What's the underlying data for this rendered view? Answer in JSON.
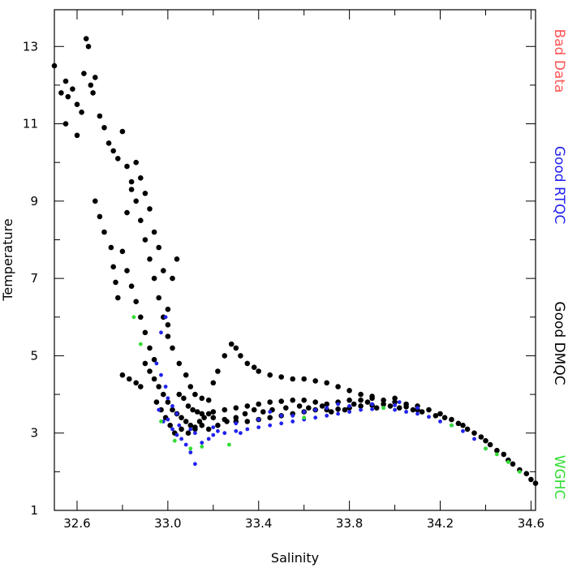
{
  "chart_data": {
    "type": "scatter",
    "xlabel": "Salinity",
    "ylabel": "Temperature",
    "xlim": [
      32.5,
      34.62
    ],
    "ylim": [
      1,
      13.95
    ],
    "xticks": [
      32.6,
      33.0,
      33.4,
      33.8,
      34.2,
      34.6
    ],
    "xtick_labels": [
      "32.6",
      "33.0",
      "33.4",
      "33.8",
      "34.2",
      "34.6"
    ],
    "yticks": [
      1,
      3,
      5,
      7,
      9,
      11,
      13
    ],
    "ytick_labels": [
      "1",
      "3",
      "5",
      "7",
      "9",
      "11",
      "13"
    ],
    "grid": false,
    "legend_position": "right, vertical",
    "series": [
      {
        "name": "Bad Data",
        "color": "#ff5555",
        "points": []
      },
      {
        "name": "Good RTQC",
        "color": "#2222ee",
        "points": [
          [
            32.95,
            4.8
          ],
          [
            32.97,
            4.5
          ],
          [
            32.99,
            4.2
          ],
          [
            33.0,
            3.9
          ],
          [
            32.96,
            3.6
          ],
          [
            32.98,
            3.3
          ],
          [
            33.02,
            3.1
          ],
          [
            33.04,
            2.95
          ],
          [
            33.06,
            2.85
          ],
          [
            33.08,
            2.7
          ],
          [
            33.1,
            2.5
          ],
          [
            33.12,
            2.2
          ],
          [
            33.15,
            2.75
          ],
          [
            33.18,
            2.85
          ],
          [
            33.2,
            2.95
          ],
          [
            33.25,
            3.0
          ],
          [
            33.3,
            3.05
          ],
          [
            33.35,
            3.1
          ],
          [
            33.4,
            3.15
          ],
          [
            33.45,
            3.2
          ],
          [
            33.5,
            3.25
          ],
          [
            33.55,
            3.3
          ],
          [
            33.6,
            3.35
          ],
          [
            33.65,
            3.4
          ],
          [
            33.7,
            3.45
          ],
          [
            33.75,
            3.5
          ],
          [
            33.8,
            3.55
          ],
          [
            33.85,
            3.6
          ],
          [
            33.9,
            3.62
          ],
          [
            33.95,
            3.65
          ],
          [
            34.0,
            3.6
          ],
          [
            34.05,
            3.55
          ],
          [
            34.1,
            3.5
          ],
          [
            34.15,
            3.42
          ],
          [
            34.2,
            3.3
          ],
          [
            34.25,
            3.2
          ],
          [
            34.3,
            3.05
          ],
          [
            34.35,
            2.85
          ],
          [
            34.4,
            2.6
          ],
          [
            33.0,
            3.35
          ],
          [
            33.05,
            3.2
          ],
          [
            33.1,
            3.1
          ],
          [
            33.2,
            3.15
          ],
          [
            33.3,
            3.25
          ],
          [
            33.4,
            3.35
          ],
          [
            33.5,
            3.45
          ],
          [
            33.6,
            3.55
          ],
          [
            33.7,
            3.65
          ],
          [
            33.8,
            3.7
          ],
          [
            33.9,
            3.75
          ],
          [
            34.0,
            3.72
          ],
          [
            34.1,
            3.65
          ],
          [
            33.02,
            3.7
          ],
          [
            33.04,
            3.5
          ],
          [
            32.97,
            5.6
          ],
          [
            32.99,
            6.0
          ],
          [
            33.45,
            3.55
          ],
          [
            33.55,
            3.45
          ],
          [
            33.65,
            3.6
          ],
          [
            33.75,
            3.75
          ],
          [
            34.02,
            3.8
          ],
          [
            33.12,
            3.0
          ],
          [
            33.22,
            3.05
          ],
          [
            33.32,
            3.0
          ]
        ]
      },
      {
        "name": "Good DMQC",
        "color": "#000000",
        "points": [
          [
            32.5,
            12.5
          ],
          [
            32.53,
            11.8
          ],
          [
            32.55,
            12.1
          ],
          [
            32.56,
            11.7
          ],
          [
            32.58,
            11.9
          ],
          [
            32.6,
            11.5
          ],
          [
            32.62,
            11.3
          ],
          [
            32.63,
            12.3
          ],
          [
            32.64,
            13.2
          ],
          [
            32.65,
            13.0
          ],
          [
            32.66,
            12.0
          ],
          [
            32.67,
            11.8
          ],
          [
            32.68,
            12.2
          ],
          [
            32.7,
            11.2
          ],
          [
            32.72,
            10.9
          ],
          [
            32.74,
            10.5
          ],
          [
            32.76,
            10.3
          ],
          [
            32.78,
            10.1
          ],
          [
            32.8,
            10.8
          ],
          [
            32.82,
            9.9
          ],
          [
            32.84,
            9.5
          ],
          [
            32.86,
            9.0
          ],
          [
            32.88,
            8.5
          ],
          [
            32.9,
            8.0
          ],
          [
            32.92,
            7.5
          ],
          [
            32.94,
            7.0
          ],
          [
            32.96,
            6.5
          ],
          [
            32.98,
            6.0
          ],
          [
            33.0,
            5.5
          ],
          [
            32.55,
            11.0
          ],
          [
            32.6,
            10.7
          ],
          [
            32.68,
            9.0
          ],
          [
            32.7,
            8.6
          ],
          [
            32.72,
            8.2
          ],
          [
            32.75,
            7.8
          ],
          [
            32.76,
            7.3
          ],
          [
            32.77,
            6.9
          ],
          [
            32.78,
            6.5
          ],
          [
            32.8,
            7.7
          ],
          [
            32.82,
            7.2
          ],
          [
            32.84,
            6.8
          ],
          [
            32.86,
            6.4
          ],
          [
            32.88,
            6.0
          ],
          [
            32.9,
            5.6
          ],
          [
            32.92,
            5.2
          ],
          [
            32.94,
            4.9
          ],
          [
            32.8,
            4.5
          ],
          [
            32.83,
            4.4
          ],
          [
            32.86,
            4.3
          ],
          [
            32.88,
            4.2
          ],
          [
            32.9,
            4.8
          ],
          [
            32.92,
            4.6
          ],
          [
            32.94,
            4.4
          ],
          [
            32.96,
            4.2
          ],
          [
            32.98,
            4.0
          ],
          [
            33.0,
            3.8
          ],
          [
            33.02,
            3.6
          ],
          [
            33.04,
            3.5
          ],
          [
            33.06,
            3.4
          ],
          [
            33.08,
            3.3
          ],
          [
            33.1,
            3.2
          ],
          [
            33.12,
            3.15
          ],
          [
            33.14,
            3.3
          ],
          [
            33.16,
            3.4
          ],
          [
            33.18,
            3.5
          ],
          [
            33.2,
            3.55
          ],
          [
            33.25,
            3.6
          ],
          [
            33.3,
            3.65
          ],
          [
            33.35,
            3.7
          ],
          [
            33.4,
            3.75
          ],
          [
            33.45,
            3.8
          ],
          [
            33.5,
            3.82
          ],
          [
            33.55,
            3.85
          ],
          [
            33.6,
            3.85
          ],
          [
            33.65,
            3.8
          ],
          [
            33.7,
            3.75
          ],
          [
            33.75,
            3.8
          ],
          [
            33.8,
            3.85
          ],
          [
            33.85,
            3.85
          ],
          [
            33.9,
            3.9
          ],
          [
            33.95,
            3.85
          ],
          [
            34.0,
            3.8
          ],
          [
            34.05,
            3.75
          ],
          [
            34.1,
            3.7
          ],
          [
            34.15,
            3.6
          ],
          [
            34.2,
            3.5
          ],
          [
            34.25,
            3.35
          ],
          [
            34.3,
            3.2
          ],
          [
            34.35,
            3.0
          ],
          [
            34.4,
            2.8
          ],
          [
            34.45,
            2.55
          ],
          [
            34.5,
            2.3
          ],
          [
            34.55,
            2.05
          ],
          [
            34.6,
            1.8
          ],
          [
            34.62,
            1.7
          ],
          [
            33.0,
            6.2
          ],
          [
            33.02,
            7.0
          ],
          [
            33.04,
            7.5
          ],
          [
            32.98,
            7.2
          ],
          [
            32.96,
            7.8
          ],
          [
            32.94,
            8.2
          ],
          [
            32.92,
            8.8
          ],
          [
            32.9,
            9.2
          ],
          [
            32.88,
            9.6
          ],
          [
            32.86,
            10.0
          ],
          [
            32.84,
            9.3
          ],
          [
            32.82,
            8.7
          ],
          [
            33.0,
            5.8
          ],
          [
            33.02,
            5.2
          ],
          [
            33.05,
            4.8
          ],
          [
            33.08,
            4.5
          ],
          [
            33.1,
            4.2
          ],
          [
            33.12,
            4.0
          ],
          [
            33.15,
            3.9
          ],
          [
            33.18,
            3.85
          ],
          [
            33.2,
            4.3
          ],
          [
            33.22,
            4.6
          ],
          [
            33.25,
            5.0
          ],
          [
            33.28,
            5.3
          ],
          [
            33.3,
            5.2
          ],
          [
            33.32,
            5.0
          ],
          [
            33.35,
            4.8
          ],
          [
            33.38,
            4.7
          ],
          [
            33.4,
            4.6
          ],
          [
            33.45,
            4.5
          ],
          [
            33.5,
            4.45
          ],
          [
            33.55,
            4.4
          ],
          [
            33.6,
            4.4
          ],
          [
            33.65,
            4.35
          ],
          [
            33.7,
            4.3
          ],
          [
            33.75,
            4.2
          ],
          [
            33.8,
            4.1
          ],
          [
            33.85,
            4.0
          ],
          [
            33.9,
            3.95
          ],
          [
            34.0,
            3.9
          ],
          [
            33.05,
            4.0
          ],
          [
            33.07,
            3.9
          ],
          [
            33.09,
            3.7
          ],
          [
            33.11,
            3.6
          ],
          [
            33.13,
            3.55
          ],
          [
            33.15,
            3.5
          ],
          [
            33.2,
            3.4
          ],
          [
            33.25,
            3.35
          ],
          [
            33.3,
            3.3
          ],
          [
            33.35,
            3.3
          ],
          [
            33.4,
            3.35
          ],
          [
            33.45,
            3.4
          ],
          [
            33.5,
            3.45
          ],
          [
            33.55,
            3.5
          ],
          [
            33.6,
            3.55
          ],
          [
            33.65,
            3.6
          ],
          [
            33.7,
            3.6
          ],
          [
            33.75,
            3.62
          ],
          [
            33.8,
            3.65
          ],
          [
            33.85,
            3.7
          ],
          [
            33.9,
            3.72
          ],
          [
            33.95,
            3.75
          ],
          [
            34.05,
            3.68
          ],
          [
            34.1,
            3.6
          ],
          [
            32.95,
            3.8
          ],
          [
            32.97,
            3.6
          ],
          [
            32.99,
            3.4
          ],
          [
            33.01,
            3.2
          ],
          [
            33.03,
            3.0
          ],
          [
            33.06,
            3.1
          ],
          [
            33.09,
            3.0
          ],
          [
            33.12,
            3.1
          ],
          [
            33.15,
            3.2
          ],
          [
            33.18,
            3.1
          ],
          [
            33.22,
            3.2
          ],
          [
            33.26,
            3.3
          ],
          [
            33.3,
            3.4
          ],
          [
            33.34,
            3.5
          ],
          [
            33.38,
            3.6
          ],
          [
            33.42,
            3.55
          ],
          [
            33.46,
            3.6
          ],
          [
            33.52,
            3.65
          ],
          [
            33.58,
            3.7
          ],
          [
            33.62,
            3.65
          ],
          [
            33.68,
            3.7
          ],
          [
            33.72,
            3.55
          ],
          [
            33.78,
            3.6
          ],
          [
            33.82,
            3.75
          ],
          [
            33.88,
            3.8
          ],
          [
            33.92,
            3.65
          ],
          [
            33.98,
            3.7
          ],
          [
            34.02,
            3.65
          ],
          [
            34.08,
            3.6
          ],
          [
            34.12,
            3.55
          ],
          [
            34.18,
            3.45
          ],
          [
            34.22,
            3.4
          ],
          [
            34.28,
            3.25
          ],
          [
            34.32,
            3.1
          ],
          [
            34.38,
            2.9
          ],
          [
            34.42,
            2.7
          ],
          [
            34.48,
            2.45
          ],
          [
            34.52,
            2.2
          ],
          [
            34.58,
            1.95
          ]
        ]
      },
      {
        "name": "WGHC",
        "color": "#33dd33",
        "points": [
          [
            32.85,
            6.0
          ],
          [
            32.88,
            5.3
          ],
          [
            32.97,
            3.3
          ],
          [
            33.03,
            2.8
          ],
          [
            33.1,
            2.6
          ],
          [
            33.15,
            2.65
          ],
          [
            33.27,
            2.7
          ],
          [
            33.6,
            3.4
          ],
          [
            33.95,
            3.65
          ],
          [
            34.25,
            3.2
          ],
          [
            34.4,
            2.6
          ],
          [
            34.45,
            2.45
          ],
          [
            34.5,
            2.25
          ],
          [
            34.55,
            2.0
          ]
        ]
      }
    ]
  }
}
